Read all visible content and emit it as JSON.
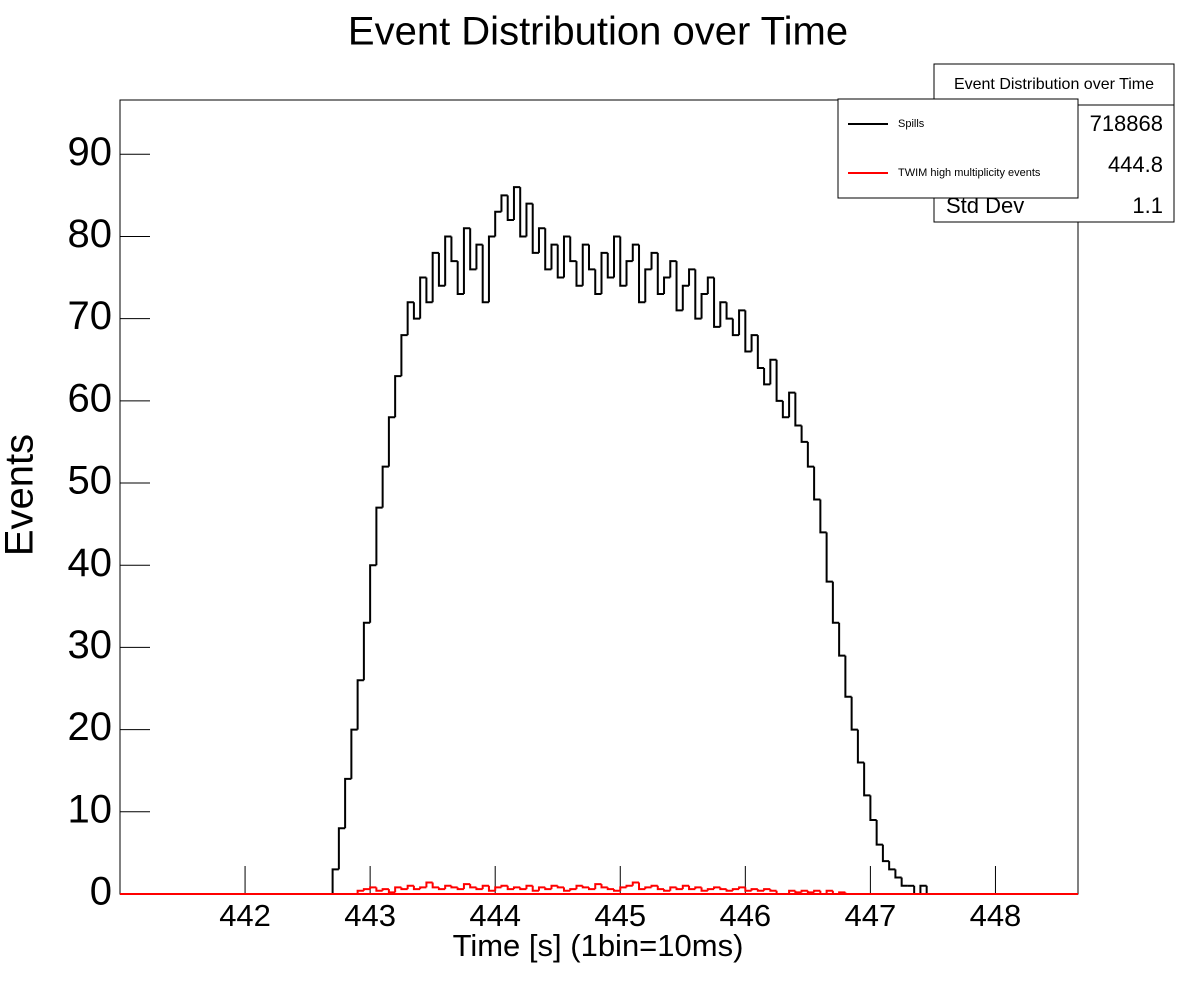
{
  "chart_data": {
    "type": "histogram",
    "title": "Event Distribution over Time",
    "x_label": "Time [s] (1bin=10ms)",
    "y_label": "Events",
    "xlim": [
      441,
      448.66
    ],
    "ylim": [
      0,
      96.6
    ],
    "xticks": [
      442,
      443,
      444,
      445,
      446,
      447,
      448
    ],
    "yticks": [
      0,
      10,
      20,
      30,
      40,
      50,
      60,
      70,
      80,
      90
    ],
    "bins": [
      442.6,
      442.65,
      442.7,
      442.75,
      442.8,
      442.85,
      442.9,
      442.95,
      443.0,
      443.05,
      443.1,
      443.15,
      443.2,
      443.25,
      443.3,
      443.35,
      443.4,
      443.45,
      443.5,
      443.55,
      443.6,
      443.65,
      443.7,
      443.75,
      443.8,
      443.85,
      443.9,
      443.95,
      444.0,
      444.05,
      444.1,
      444.15,
      444.2,
      444.25,
      444.3,
      444.35,
      444.4,
      444.45,
      444.5,
      444.55,
      444.6,
      444.65,
      444.7,
      444.75,
      444.8,
      444.85,
      444.9,
      444.95,
      445.0,
      445.05,
      445.1,
      445.15,
      445.2,
      445.25,
      445.3,
      445.35,
      445.4,
      445.45,
      445.5,
      445.55,
      445.6,
      445.65,
      445.7,
      445.75,
      445.8,
      445.85,
      445.9,
      445.95,
      446.0,
      446.05,
      446.1,
      446.15,
      446.2,
      446.25,
      446.3,
      446.35,
      446.4,
      446.45,
      446.5,
      446.55,
      446.6,
      446.65,
      446.7,
      446.75,
      446.8,
      446.85,
      446.9,
      446.95,
      447.0,
      447.05,
      447.1,
      447.15,
      447.2,
      447.25,
      447.3,
      447.35,
      447.4,
      447.45,
      447.5,
      447.55,
      447.6,
      447.65
    ],
    "series": [
      {
        "name": "Spills",
        "color": "#000000",
        "values": [
          0,
          0,
          3,
          8,
          14,
          20,
          26,
          33,
          40,
          47,
          52,
          58,
          63,
          68,
          72,
          70,
          75,
          72,
          78,
          74,
          80,
          77,
          73,
          81,
          76,
          79,
          72,
          80,
          83,
          85,
          82,
          86,
          80,
          84,
          78,
          81,
          76,
          79,
          75,
          80,
          77,
          74,
          79,
          76,
          73,
          78,
          75,
          80,
          74,
          77,
          79,
          72,
          76,
          78,
          73,
          75,
          77,
          71,
          74,
          76,
          70,
          73,
          75,
          69,
          72,
          70,
          68,
          71,
          66,
          68,
          64,
          62,
          65,
          60,
          58,
          61,
          57,
          55,
          52,
          48,
          44,
          38,
          33,
          29,
          24,
          20,
          16,
          12,
          9,
          6,
          4,
          3,
          2,
          1,
          1,
          0,
          1,
          0,
          0,
          0
        ]
      },
      {
        "name": "TWIM high multiplicity events",
        "color": "#ff0000",
        "values": [
          0,
          0,
          0,
          0,
          0,
          0,
          0.4,
          0.6,
          0.8,
          0.4,
          0.6,
          0.2,
          0.8,
          0.6,
          1,
          0.6,
          0.8,
          1.4,
          0.8,
          0.6,
          1,
          0.8,
          0.6,
          1.2,
          0.8,
          0.6,
          1,
          0.4,
          0.8,
          1,
          0.6,
          0.8,
          0.6,
          1,
          0.4,
          0.8,
          0.6,
          1,
          0.8,
          0.4,
          0.6,
          1,
          0.8,
          0.6,
          1.2,
          0.8,
          0.6,
          0.4,
          0.8,
          1,
          1.4,
          0.6,
          0.8,
          1,
          0.6,
          0.4,
          0.8,
          0.6,
          1,
          0.6,
          0.8,
          0.4,
          0.6,
          0.8,
          0.6,
          0.4,
          0.6,
          0.8,
          0.4,
          0.6,
          0.4,
          0.6,
          0.4,
          0,
          0,
          0.4,
          0.2,
          0.4,
          0.2,
          0.4,
          0,
          0.4,
          0,
          0.2,
          0,
          0,
          0,
          0,
          0,
          0,
          0,
          0,
          0,
          0,
          0,
          0,
          0,
          0,
          0,
          0
        ]
      }
    ],
    "legend": "top-right",
    "stats": {
      "title": "Event Distribution over Time",
      "rows": [
        {
          "value": 718868
        },
        {
          "value": 444.8
        },
        {
          "label": "Std Dev",
          "value": 1.1
        }
      ]
    }
  }
}
